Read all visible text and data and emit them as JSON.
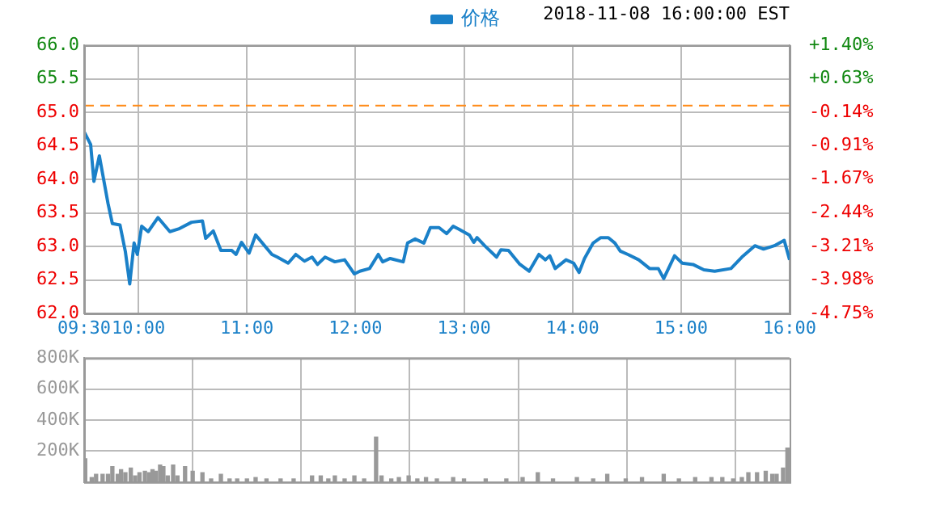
{
  "chart_data": [
    {
      "type": "line",
      "annotations": [
        "2018-11-08 16:00:00 EST"
      ],
      "series": [
        {
          "name": "价格",
          "color": "#1a80c8",
          "x": [
            9.5,
            9.56,
            9.59,
            9.64,
            9.72,
            9.76,
            9.83,
            9.88,
            9.92,
            9.96,
            9.99,
            10.03,
            10.09,
            10.18,
            10.29,
            10.37,
            10.49,
            10.59,
            10.62,
            10.69,
            10.76,
            10.86,
            10.9,
            10.95,
            11.02,
            11.08,
            11.23,
            11.28,
            11.38,
            11.45,
            11.53,
            11.6,
            11.65,
            11.72,
            11.81,
            11.9,
            11.99,
            12.04,
            12.13,
            12.21,
            12.25,
            12.32,
            12.44,
            12.48,
            12.55,
            12.63,
            12.69,
            12.77,
            12.84,
            12.9,
            12.95,
            13.05,
            13.09,
            13.12,
            13.19,
            13.3,
            13.34,
            13.41,
            13.51,
            13.6,
            13.69,
            13.75,
            13.79,
            13.84,
            13.94,
            14.01,
            14.06,
            14.11,
            14.19,
            14.26,
            14.33,
            14.39,
            14.44,
            14.51,
            14.61,
            14.71,
            14.79,
            14.84,
            14.94,
            15.01,
            15.11,
            15.21,
            15.31,
            15.46,
            15.56,
            15.68,
            15.76,
            15.86,
            15.95,
            16.0
          ],
          "values": [
            64.71,
            64.52,
            63.97,
            64.35,
            63.64,
            63.34,
            63.32,
            62.92,
            62.44,
            63.05,
            62.88,
            63.3,
            63.22,
            63.43,
            63.22,
            63.26,
            63.36,
            63.38,
            63.12,
            63.23,
            62.94,
            62.94,
            62.88,
            63.06,
            62.9,
            63.17,
            62.88,
            62.84,
            62.75,
            62.88,
            62.78,
            62.84,
            62.73,
            62.84,
            62.77,
            62.8,
            62.59,
            62.63,
            62.67,
            62.88,
            62.77,
            62.82,
            62.77,
            63.05,
            63.11,
            63.05,
            63.28,
            63.28,
            63.19,
            63.3,
            63.26,
            63.17,
            63.06,
            63.13,
            63.01,
            62.84,
            62.95,
            62.94,
            62.74,
            62.63,
            62.88,
            62.8,
            62.86,
            62.67,
            62.8,
            62.75,
            62.61,
            62.82,
            63.05,
            63.13,
            63.13,
            63.05,
            62.93,
            62.88,
            62.8,
            62.67,
            62.67,
            62.52,
            62.86,
            62.75,
            62.73,
            62.65,
            62.63,
            62.67,
            62.84,
            63.01,
            62.96,
            63.01,
            63.09,
            62.8
          ]
        }
      ],
      "xlim": [
        9.5,
        16
      ],
      "xticks": [
        {
          "value": 9.5,
          "label": "09:30"
        },
        {
          "value": 10,
          "label": "10:00"
        },
        {
          "value": 11,
          "label": "11:00"
        },
        {
          "value": 12,
          "label": "12:00"
        },
        {
          "value": 13,
          "label": "13:00"
        },
        {
          "value": 14,
          "label": "14:00"
        },
        {
          "value": 15,
          "label": "15:00"
        },
        {
          "value": 16,
          "label": "16:00"
        }
      ],
      "ylim": [
        62,
        66
      ],
      "yticks": [
        {
          "value": 62,
          "label": "62.0"
        },
        {
          "value": 62.5,
          "label": "62.5"
        },
        {
          "value": 63,
          "label": "63.0"
        },
        {
          "value": 63.5,
          "label": "63.5"
        },
        {
          "value": 64,
          "label": "64.0"
        },
        {
          "value": 64.5,
          "label": "64.5"
        },
        {
          "value": 65,
          "label": "65.0"
        },
        {
          "value": 65.5,
          "label": "65.5"
        },
        {
          "value": 66,
          "label": "66.0"
        }
      ],
      "y2lim": [
        -4.75,
        1.4
      ],
      "y2ticks": [
        {
          "value": -4.75,
          "label": "-4.75%"
        },
        {
          "value": -3.98,
          "label": "-3.98%"
        },
        {
          "value": -3.21,
          "label": "-3.21%"
        },
        {
          "value": -2.44,
          "label": "-2.44%"
        },
        {
          "value": -1.67,
          "label": "-1.67%"
        },
        {
          "value": -0.91,
          "label": "-0.91%"
        },
        {
          "value": -0.14,
          "label": "-0.14%"
        },
        {
          "value": 0.63,
          "label": "+0.63%"
        },
        {
          "value": 1.4,
          "label": "+1.40%"
        }
      ],
      "ref_lines": [
        {
          "axis": "y",
          "value": 65.1,
          "color": "#ff8c1a",
          "line_style": "dashed"
        }
      ],
      "grid": true,
      "legend": "top",
      "marker": "none"
    },
    {
      "type": "bar",
      "color": "#999999",
      "x": [
        9.51,
        9.57,
        9.61,
        9.67,
        9.72,
        9.76,
        9.81,
        9.84,
        9.88,
        9.93,
        9.97,
        10.01,
        10.06,
        10.1,
        10.13,
        10.16,
        10.2,
        10.23,
        10.27,
        10.32,
        10.36,
        10.43,
        10.5,
        10.59,
        10.67,
        10.76,
        10.84,
        10.91,
        11.0,
        11.08,
        11.18,
        11.31,
        11.43,
        11.6,
        11.68,
        11.75,
        11.81,
        11.9,
        11.99,
        12.08,
        12.19,
        12.24,
        12.33,
        12.4,
        12.49,
        12.57,
        12.65,
        12.75,
        12.9,
        13.0,
        13.2,
        13.39,
        13.54,
        13.68,
        13.82,
        14.04,
        14.19,
        14.32,
        14.49,
        14.64,
        14.84,
        14.98,
        15.13,
        15.28,
        15.38,
        15.48,
        15.56,
        15.62,
        15.7,
        15.78,
        15.84,
        15.88,
        15.94,
        15.98
      ],
      "values": [
        150000,
        30000,
        50000,
        50000,
        50000,
        100000,
        50000,
        80000,
        60000,
        90000,
        40000,
        60000,
        70000,
        60000,
        80000,
        70000,
        110000,
        100000,
        40000,
        110000,
        40000,
        100000,
        70000,
        60000,
        20000,
        50000,
        20000,
        20000,
        20000,
        30000,
        20000,
        20000,
        20000,
        40000,
        40000,
        20000,
        40000,
        20000,
        40000,
        20000,
        290000,
        40000,
        20000,
        30000,
        40000,
        20000,
        30000,
        20000,
        30000,
        20000,
        20000,
        20000,
        30000,
        60000,
        20000,
        30000,
        20000,
        50000,
        20000,
        30000,
        50000,
        20000,
        30000,
        30000,
        30000,
        20000,
        30000,
        60000,
        60000,
        70000,
        50000,
        50000,
        90000,
        220000
      ],
      "xlim": [
        9.5,
        16
      ],
      "xticks": [
        10,
        11,
        12,
        13,
        14,
        15
      ],
      "ylim": [
        0,
        800000
      ],
      "yticks": [
        {
          "value": 0,
          "label": null
        },
        {
          "value": 200000,
          "label": "200K"
        },
        {
          "value": 400000,
          "label": "400K"
        },
        {
          "value": 600000,
          "label": "600K"
        },
        {
          "value": 800000,
          "label": "800K"
        }
      ],
      "grid": true,
      "tick_labels": "y"
    }
  ]
}
